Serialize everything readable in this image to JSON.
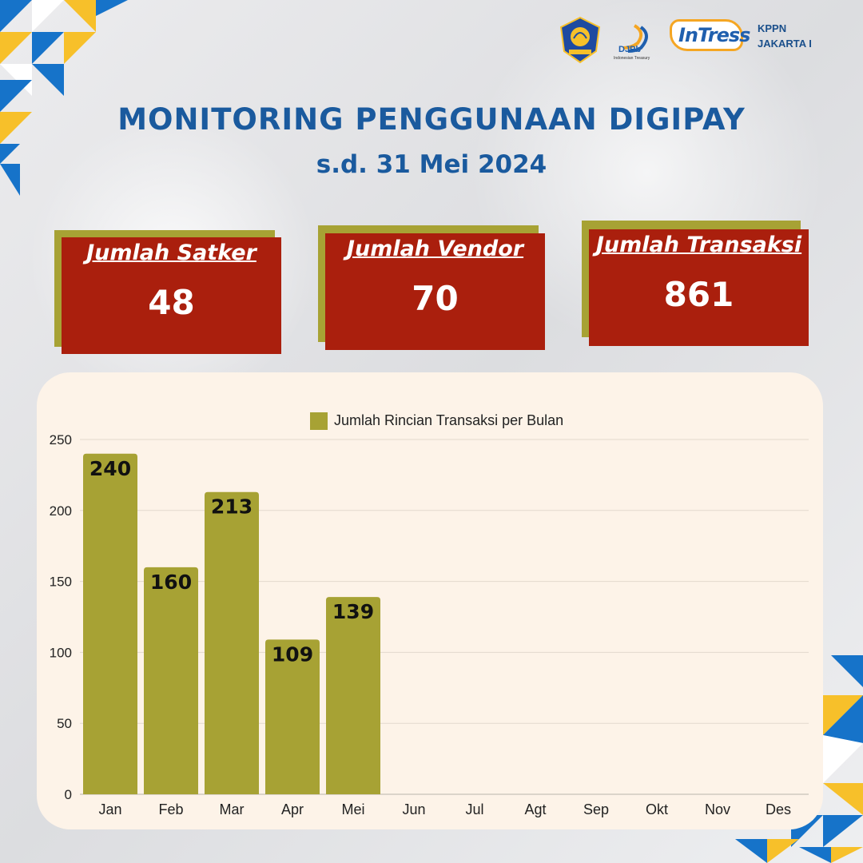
{
  "header": {
    "djpb_label": "DJPb",
    "djpb_sub": "Indonesian Treasury",
    "intress_label": "InTress",
    "office_line1": "KPPN",
    "office_line2": "JAKARTA I"
  },
  "title": "MONITORING PENGGUNAAN DIGIPAY",
  "subtitle": "s.d. 31 Mei 2024",
  "stats": [
    {
      "label": "Jumlah Satker",
      "value": "48"
    },
    {
      "label": "Jumlah Vendor",
      "value": "70"
    },
    {
      "label": "Jumlah Transaksi",
      "value": "861"
    }
  ],
  "colors": {
    "title": "#1a5a9e",
    "card": "#aa1f0d",
    "accent": "#a7a234",
    "panel": "#fdf3e8"
  },
  "chart_data": {
    "type": "bar",
    "categories": [
      "Jan",
      "Feb",
      "Mar",
      "Apr",
      "Mei",
      "Jun",
      "Jul",
      "Agt",
      "Sep",
      "Okt",
      "Nov",
      "Des"
    ],
    "series": [
      {
        "name": "Jumlah Rincian Transaksi per Bulan",
        "values": [
          240,
          160,
          213,
          109,
          139,
          null,
          null,
          null,
          null,
          null,
          null,
          null
        ],
        "color": "#a7a234"
      }
    ],
    "y_ticks": [
      "0",
      "50",
      "100",
      "150",
      "200",
      "250"
    ],
    "ylim": [
      0,
      250
    ],
    "grid": true,
    "legend": "top"
  }
}
